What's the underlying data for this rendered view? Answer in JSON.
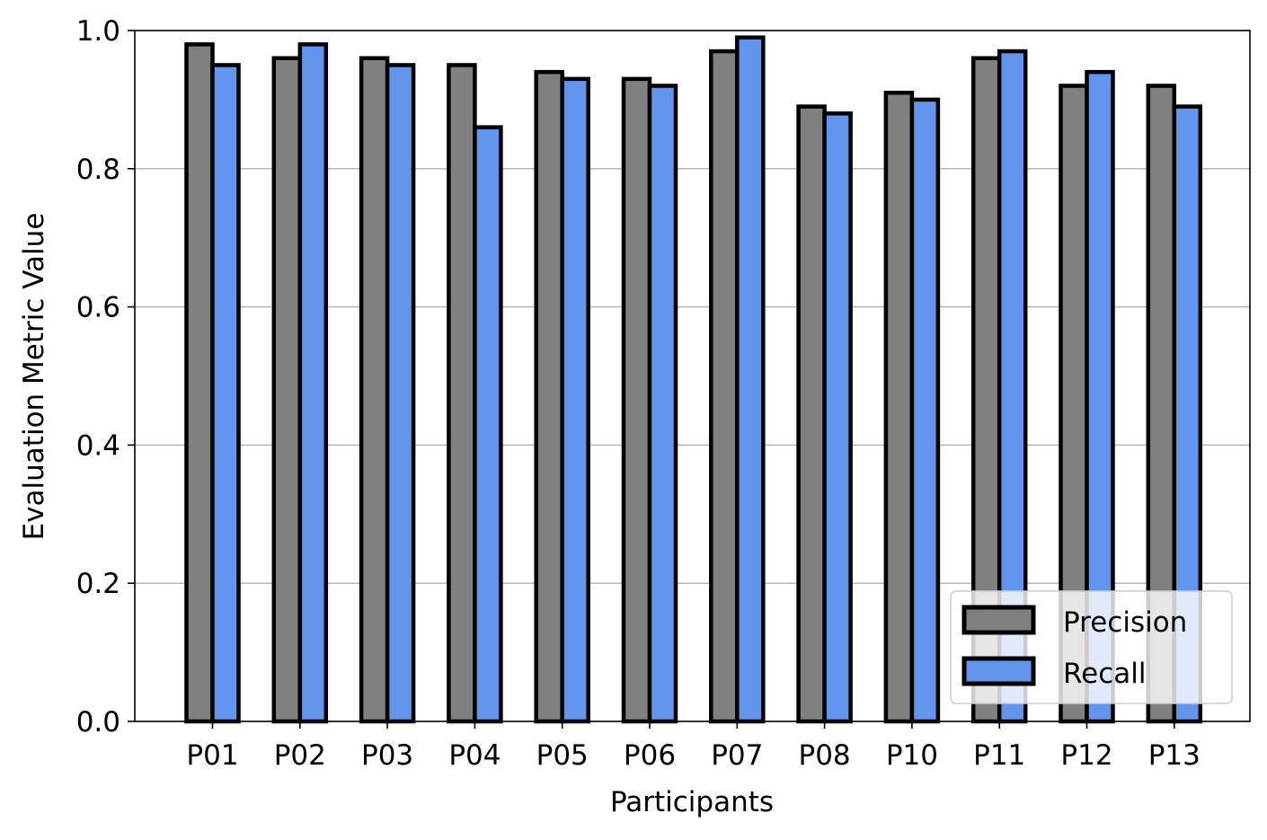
{
  "chart_data": {
    "type": "bar",
    "title": "",
    "xlabel": "Participants",
    "ylabel": "Evaluation Metric Value",
    "ylim": [
      0,
      1.0
    ],
    "yticks": [
      "0.0",
      "0.2",
      "0.4",
      "0.6",
      "0.8",
      "1.0"
    ],
    "grid": "horizontal",
    "legend_position": "lower-right",
    "categories": [
      "P01",
      "P02",
      "P03",
      "P04",
      "P05",
      "P06",
      "P07",
      "P08",
      "P10",
      "P11",
      "P12",
      "P13"
    ],
    "series": [
      {
        "name": "Precision",
        "color": "#808080",
        "values": [
          0.98,
          0.96,
          0.96,
          0.95,
          0.94,
          0.93,
          0.97,
          0.89,
          0.91,
          0.96,
          0.92,
          0.92
        ]
      },
      {
        "name": "Recall",
        "color": "#6495ED",
        "values": [
          0.95,
          0.98,
          0.95,
          0.86,
          0.93,
          0.92,
          0.99,
          0.88,
          0.9,
          0.97,
          0.94,
          0.89
        ]
      }
    ]
  }
}
